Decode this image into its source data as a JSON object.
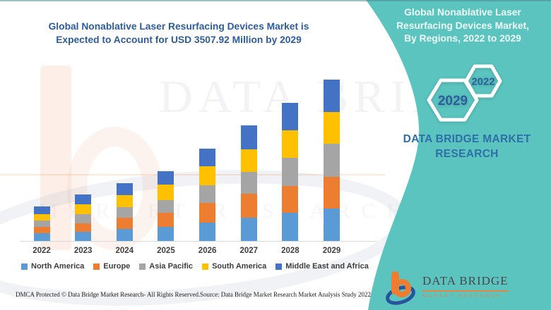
{
  "canvas": {
    "teal": "#5bc4bf",
    "white": "#ffffff"
  },
  "left_panel": {
    "title_lines": [
      "Global Nonablative Laser Resurfacing Devices Market is",
      "Expected to Account for USD 3507.92 Million by 2029"
    ],
    "footer_left": "DMCA Protected © Data Bridge Market Research- All Rights Reserved.",
    "footer_right": "Source: Data Bridge Market Research Market Analysis Study 2022"
  },
  "right_panel": {
    "title_lines": [
      "Global Nonablative Laser",
      "Resurfacing Devices Market,",
      "By Regions, 2022 to 2029"
    ],
    "hexagons": [
      {
        "label": "2022"
      },
      {
        "label": "2029"
      }
    ],
    "brand_caption_lines": [
      "DATA BRIDGE MARKET",
      "RESEARCH"
    ],
    "logo": {
      "name": "DATA BRIDGE",
      "tagline": "MARKET RESEARCH"
    }
  },
  "watermark": {
    "line1": "DATA BRIDGE",
    "line2": "MARKET RESEARCH"
  },
  "chart_data": {
    "type": "bar",
    "stacked": true,
    "title": "Global Nonablative Laser Resurfacing Devices Market is Expected to Account for USD 3507.92 Million by 2029",
    "categories": [
      "2022",
      "2023",
      "2024",
      "2025",
      "2026",
      "2027",
      "2028",
      "2029"
    ],
    "series": [
      {
        "name": "North America",
        "color": "#5B9BD5",
        "values": [
          11,
          13,
          17,
          20,
          26,
          33.5,
          40,
          46
        ]
      },
      {
        "name": "Europe",
        "color": "#ED7D31",
        "values": [
          9,
          12,
          16.5,
          20,
          28,
          33.5,
          38.5,
          45
        ]
      },
      {
        "name": "Asia Pacific",
        "color": "#A5A5A5",
        "values": [
          9,
          13.5,
          15,
          18.5,
          25.5,
          31.5,
          39.5,
          47
        ]
      },
      {
        "name": "South America",
        "color": "#FFC000",
        "values": [
          9.5,
          14,
          16.5,
          21.5,
          27,
          31.5,
          39,
          45.5
        ]
      },
      {
        "name": "Middle East and Africa",
        "color": "#4472C4",
        "values": [
          10.5,
          13.5,
          17.5,
          19,
          24.5,
          34.5,
          39,
          46
        ]
      }
    ],
    "value_units": "relative height (px as drawn; chart shows no numeric value axis)",
    "stated_total_2029": "USD 3507.92 Million",
    "xlabel": "",
    "ylabel": "",
    "grid": false,
    "legend_position": "bottom"
  }
}
